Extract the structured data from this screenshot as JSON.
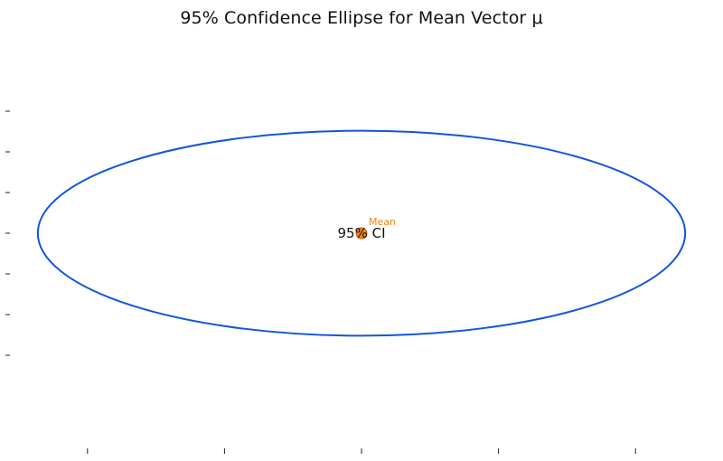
{
  "chart_data": {
    "type": "scatter",
    "title": "95% Confidence Ellipse for Mean Vector μ",
    "xlabel": "",
    "ylabel": "",
    "xlim": [
      -1.0,
      1.0
    ],
    "ylim": [
      -1.0,
      1.0
    ],
    "x_ticks": [
      -0.8,
      -0.4,
      0.0,
      0.4,
      0.8
    ],
    "y_ticks": [
      -0.75,
      -0.5,
      -0.25,
      0.0,
      0.25,
      0.5,
      0.75
    ],
    "tick_labels_visible": false,
    "grid": false,
    "ellipse": {
      "label": "95% CI",
      "center": [
        0.0,
        0.0
      ],
      "semi_axis_x": 0.945,
      "semi_axis_y": 0.63,
      "rotation_deg": 0,
      "color": "#1155dd"
    },
    "mean_point": {
      "label": "Mean",
      "x": 0.0,
      "y": 0.0,
      "color": "#f58518",
      "edge_color": "#cc5500"
    }
  }
}
